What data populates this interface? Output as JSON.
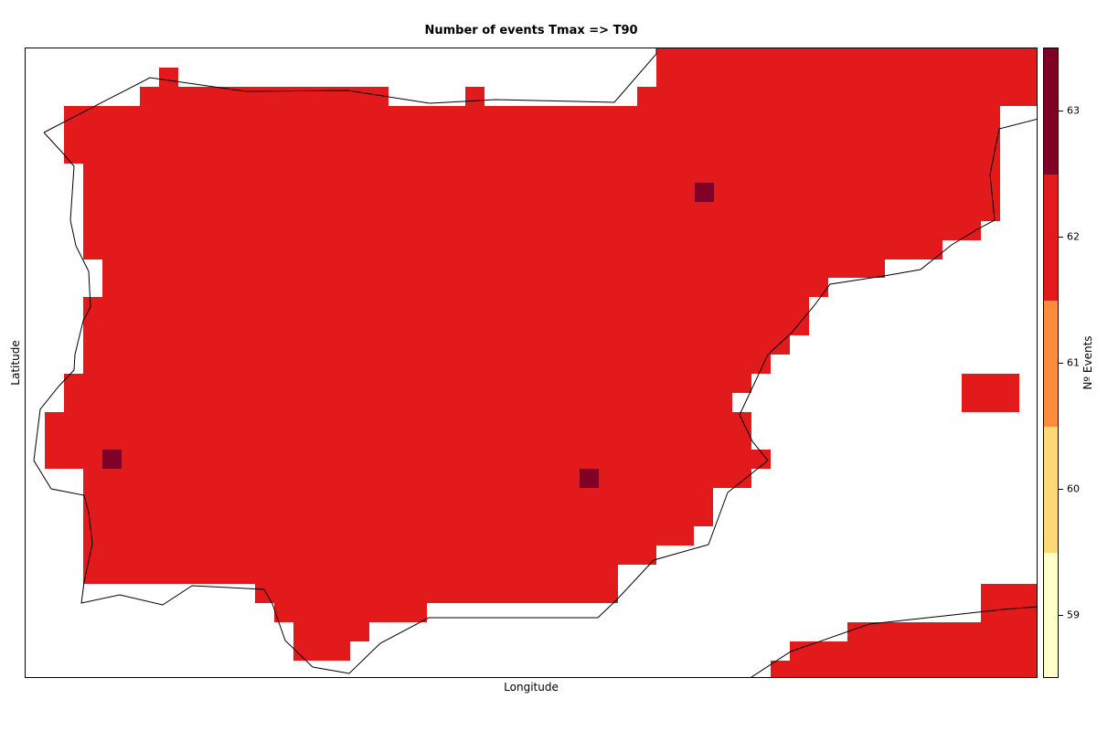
{
  "title": "Number of events Tmax => T90",
  "xlabel": "Longitude",
  "ylabel": "Latitude",
  "colorbar": {
    "label": "Nº Events",
    "ticks": [
      "63",
      "62",
      "61",
      "60",
      "59"
    ],
    "colors": [
      "#800026",
      "#e31a1c",
      "#fd8d3c",
      "#fed976",
      "#ffffcc"
    ]
  },
  "colors": {
    "base_cell": "#e31a1c",
    "high_cell": "#800026",
    "coastline": "#000000"
  }
}
